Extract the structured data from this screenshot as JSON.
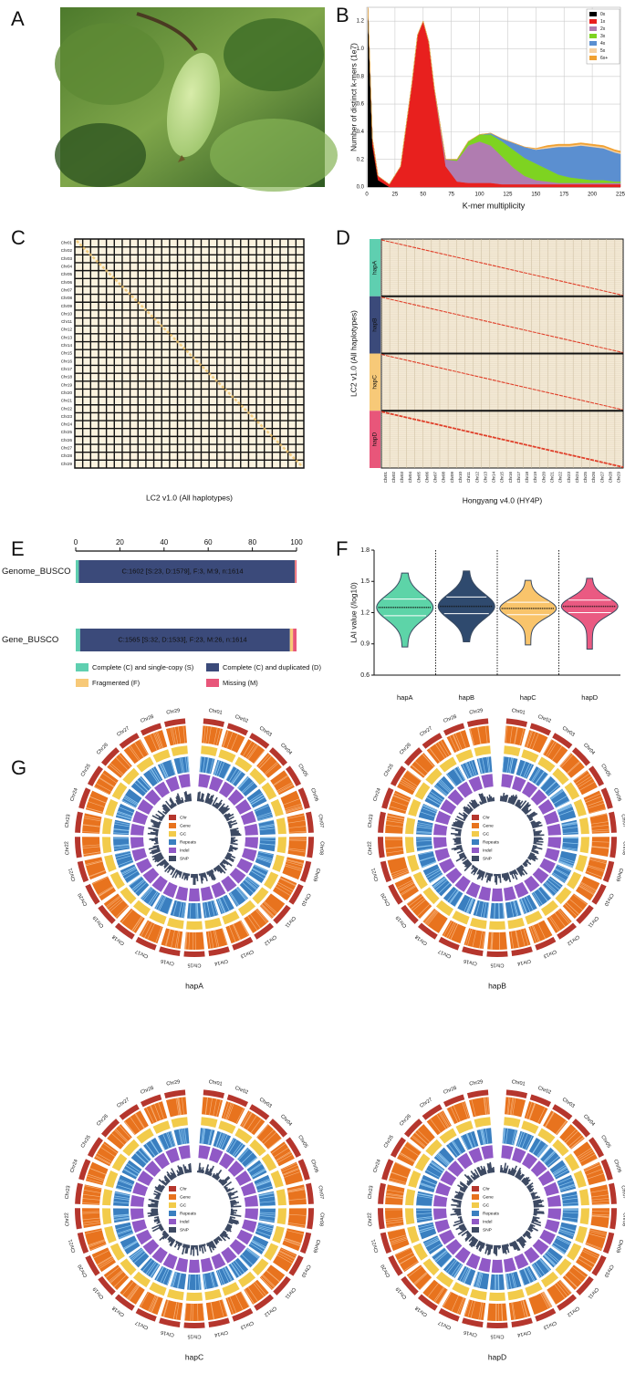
{
  "panels": [
    "A",
    "B",
    "C",
    "D",
    "E",
    "F",
    "G"
  ],
  "chart_data": [
    {
      "type": "area",
      "xlabel": "K-mer multiplicity",
      "ylabel": "Number of distinct k-mers (1e7)",
      "x": [
        1,
        5,
        10,
        20,
        30,
        40,
        45,
        50,
        55,
        60,
        70,
        80,
        90,
        100,
        110,
        120,
        130,
        140,
        150,
        160,
        170,
        180,
        190,
        200,
        210,
        220,
        225
      ],
      "xlim": [
        0,
        225
      ],
      "xticks": [
        0,
        25,
        50,
        75,
        100,
        125,
        150,
        175,
        200,
        225
      ],
      "ylim": [
        0,
        1.3
      ],
      "yticks": [
        {
          "value": 0,
          "label": "0.0"
        },
        0.2,
        0.4,
        0.6,
        0.8,
        {
          "value": 1,
          "label": "1.0"
        },
        1.2
      ],
      "grid": true,
      "legend": "top-right",
      "series": [
        {
          "name": "0x",
          "color": "#000000",
          "values": [
            1.3,
            0.3,
            0.05,
            0,
            0,
            0,
            0,
            0,
            0,
            0,
            0,
            0,
            0,
            0,
            0,
            0,
            0,
            0,
            0,
            0,
            0,
            0,
            0,
            0,
            0,
            0,
            0
          ]
        },
        {
          "name": "1x",
          "color": "#e8201e",
          "values": [
            0,
            0.05,
            0.03,
            0.02,
            0.15,
            0.75,
            1.1,
            1.2,
            1.05,
            0.7,
            0.15,
            0.04,
            0.03,
            0.03,
            0.03,
            0.02,
            0.02,
            0.02,
            0.02,
            0.02,
            0.02,
            0.02,
            0.02,
            0.02,
            0.02,
            0.02,
            0.02
          ]
        },
        {
          "name": "2x",
          "color": "#b07cb0",
          "values": [
            0,
            0,
            0,
            0,
            0,
            0,
            0,
            0,
            0,
            0.01,
            0.05,
            0.15,
            0.27,
            0.3,
            0.27,
            0.2,
            0.12,
            0.06,
            0.03,
            0.02,
            0.01,
            0.01,
            0.01,
            0.01,
            0.01,
            0.01,
            0.01
          ]
        },
        {
          "name": "3x",
          "color": "#7ed321",
          "values": [
            0,
            0,
            0,
            0,
            0,
            0,
            0,
            0,
            0,
            0,
            0,
            0.01,
            0.03,
            0.05,
            0.08,
            0.11,
            0.13,
            0.13,
            0.12,
            0.09,
            0.06,
            0.04,
            0.03,
            0.02,
            0.02,
            0.01,
            0.01
          ]
        },
        {
          "name": "4x",
          "color": "#5b8fd0",
          "values": [
            0,
            0,
            0,
            0,
            0,
            0,
            0,
            0,
            0,
            0,
            0,
            0,
            0,
            0,
            0.01,
            0.02,
            0.05,
            0.08,
            0.1,
            0.15,
            0.2,
            0.22,
            0.24,
            0.24,
            0.23,
            0.21,
            0.2
          ]
        },
        {
          "name": "5x",
          "color": "#f5d0a0",
          "values": [
            0,
            0,
            0,
            0,
            0,
            0,
            0,
            0,
            0,
            0,
            0,
            0,
            0,
            0,
            0,
            0,
            0,
            0,
            0.005,
            0.01,
            0.01,
            0.01,
            0.01,
            0.01,
            0.01,
            0.01,
            0.01
          ]
        },
        {
          "name": "6x+",
          "color": "#f0a030",
          "values": [
            0,
            0,
            0,
            0,
            0,
            0,
            0,
            0,
            0,
            0,
            0,
            0,
            0,
            0,
            0,
            0,
            0,
            0,
            0.005,
            0.01,
            0.01,
            0.01,
            0.01,
            0.01,
            0.01,
            0.01,
            0.01
          ]
        }
      ]
    },
    {
      "type": "stacked-hbar",
      "categories": [
        "Genome_BUSCO",
        "Gene_BUSCO"
      ],
      "bar_labels": [
        "C:1602 [S:23, D:1579], F:3, M:9, n:1614",
        "C:1565 [S:32, D:1533], F:23, M:26, n:1614"
      ],
      "xlim": [
        0,
        100
      ],
      "xticks": [
        0,
        20,
        40,
        60,
        80,
        100
      ],
      "series": [
        {
          "name": "Complete (C) and single-copy (S)",
          "color": "#5fcfb0",
          "values": [
            1.4,
            2.0
          ]
        },
        {
          "name": "Complete (C) and duplicated (D)",
          "color": "#3b4a7a",
          "values": [
            97.8,
            95.0
          ]
        },
        {
          "name": "Fragmented (F)",
          "color": "#f7c978",
          "values": [
            0.2,
            1.4
          ]
        },
        {
          "name": "Missing (M)",
          "color": "#e8567a",
          "values": [
            0.6,
            1.6
          ]
        }
      ]
    },
    {
      "type": "violin",
      "ylabel": "LAI value (/log10)",
      "categories": [
        "hapA",
        "hapB",
        "hapC",
        "hapD"
      ],
      "colors": [
        "#5dd4a8",
        "#2f4a6e",
        "#f9c46b",
        "#ea5a82"
      ],
      "ylim": [
        0.6,
        1.8
      ],
      "yticks": [
        0.6,
        0.9,
        1.2,
        1.5,
        1.8
      ],
      "median": [
        1.25,
        1.26,
        1.24,
        1.26
      ],
      "q1": [
        1.17,
        1.19,
        1.18,
        1.2
      ],
      "q3": [
        1.33,
        1.35,
        1.3,
        1.32
      ],
      "min": [
        0.87,
        0.92,
        0.89,
        0.85
      ],
      "max": [
        1.58,
        1.6,
        1.51,
        1.53
      ]
    }
  ],
  "dotplot_c": {
    "xlabel": "LC2 v1.0 (All haplotypes)",
    "chromosomes": [
      "Chr01",
      "Chr02",
      "Chr03",
      "Chr04",
      "Chr05",
      "Chr06",
      "Chr07",
      "Chr08",
      "Chr09",
      "Chr10",
      "Chr11",
      "Chr12",
      "Chr13",
      "Chr14",
      "Chr15",
      "Chr16",
      "Chr17",
      "Chr18",
      "Chr19",
      "Chr20",
      "Chr21",
      "Chr22",
      "Chr23",
      "Chr24",
      "Chr25",
      "Chr26",
      "Chr27",
      "Chr28",
      "Chr29"
    ]
  },
  "dotplot_d": {
    "ylabel": "LC2 v1.0 (All haplotypes)",
    "xlabel": "Hongyang v4.0 (HY4P)",
    "haplotypes": [
      "hapA",
      "hapB",
      "hapC",
      "hapD"
    ]
  },
  "circos": {
    "legend": [
      {
        "name": "Chr",
        "color": "#b5362d"
      },
      {
        "name": "Gene",
        "color": "#e8731e"
      },
      {
        "name": "GC",
        "color": "#f2cb4a"
      },
      {
        "name": "Repeats",
        "color": "#3a7fc0"
      },
      {
        "name": "Indel",
        "color": "#9059c6"
      },
      {
        "name": "SNP",
        "color": "#3d4a63"
      }
    ]
  }
}
